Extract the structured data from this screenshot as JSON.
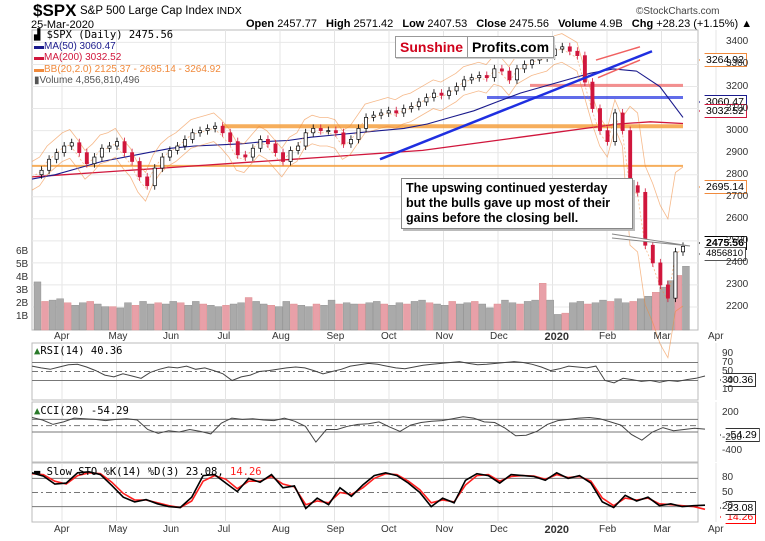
{
  "header": {
    "symbol": "$SPX",
    "name": "S&P 500 Large Cap Index",
    "exchange": "INDX",
    "date": "25-Mar-2020",
    "credit": "©StockCharts.com",
    "open_label": "Open",
    "open": "2457.77",
    "high_label": "High",
    "high": "2571.42",
    "low_label": "Low",
    "low": "2407.53",
    "close_label": "Close",
    "close": "2475.56",
    "volume_label": "Volume",
    "volume": "4.9B",
    "chg_label": "Chg",
    "chg": "+28.23 (+1.15%) ▲"
  },
  "logo": {
    "part1": "Sunshine",
    "part2": "Profits.com"
  },
  "annotation": "The upswing continued yesterday but the bulls gave up most of their gains before the closing bell.",
  "legend": {
    "price": "$SPX (Daily) 2475.56",
    "ma50": "MA(50) 3060.47",
    "ma200": "MA(200) 3032.52",
    "bb": "BB(20,2.0) 2125.37 - 2695.14 - 3264.92",
    "volume": "Volume 4,856,810,496"
  },
  "colors": {
    "ma50": "#1a1a8c",
    "ma200": "#d0163c",
    "bb": "#f08a3c",
    "trend_blue": "#1f2fe0",
    "orange_level": "#f5a040",
    "red_level": "#f06060",
    "candle_up": "#000000",
    "candle_down": "#d0163c",
    "vol_up": "#aaaaaa",
    "vol_down": "#e8a0a8",
    "rsi_hi_fill": "#5a8a5a",
    "rsi_lo_fill": "#a04848"
  },
  "tags": {
    "bb_upper": "3264.92",
    "ma50": "3060.47",
    "ma200": "3032.52",
    "bb_mid": "2695.14",
    "close": "2475.56",
    "volume": "4856810",
    "rsi": "40.36",
    "cci": "-54.29",
    "sto_k": "23.08",
    "sto_d": "14.26"
  },
  "chart_data": [
    {
      "type": "candlestick",
      "title": "$SPX S&P 500 Large Cap Index (Daily)",
      "x_labels": [
        "Apr",
        "May",
        "Jun",
        "Jul",
        "Aug",
        "Sep",
        "Oct",
        "Nov",
        "Dec",
        "2020",
        "Feb",
        "Mar",
        "Apr"
      ],
      "y_ticks": [
        2200,
        2300,
        2400,
        2500,
        2600,
        2700,
        2800,
        2900,
        3000,
        3100,
        3200,
        3300,
        3400
      ],
      "ylim": [
        2150,
        3420
      ],
      "close_path": [
        2800,
        2820,
        2870,
        2900,
        2930,
        2945,
        2900,
        2850,
        2880,
        2920,
        2930,
        2950,
        2900,
        2860,
        2790,
        2750,
        2830,
        2880,
        2910,
        2930,
        2960,
        2990,
        3000,
        3010,
        3020,
        2990,
        2950,
        2890,
        2880,
        2920,
        2960,
        2940,
        2900,
        2860,
        2910,
        2930,
        2990,
        3010,
        3000,
        3000,
        2990,
        2940,
        2960,
        3010,
        3060,
        3070,
        3080,
        3090,
        3080,
        3100,
        3110,
        3130,
        3150,
        3170,
        3160,
        3180,
        3200,
        3230,
        3240,
        3250,
        3240,
        3280,
        3270,
        3230,
        3280,
        3300,
        3320,
        3330,
        3340,
        3370,
        3380,
        3360,
        3340,
        3220,
        3100,
        3000,
        2950,
        3080,
        3000,
        2750,
        2720,
        2480,
        2400,
        2300,
        2240,
        2450,
        2475
      ],
      "ma50": [
        2780,
        2800,
        2830,
        2860,
        2880,
        2900,
        2920,
        2930,
        2935,
        2940,
        2950,
        2955,
        2970,
        2980,
        2990,
        3000,
        3010,
        3030,
        3060,
        3090,
        3130,
        3170,
        3200,
        3230,
        3260,
        3280,
        3270,
        3200,
        3060
      ],
      "ma200": [
        2790,
        2800,
        2810,
        2820,
        2830,
        2840,
        2850,
        2860,
        2870,
        2880,
        2890,
        2900,
        2910,
        2930,
        2950,
        2970,
        2990,
        3010,
        3030,
        3040,
        3032
      ],
      "bb_latest": {
        "lower": 2125.37,
        "middle": 2695.14,
        "upper": 3264.92
      },
      "levels_orange": [
        3020,
        2840
      ],
      "levels_blue": [
        3150
      ],
      "levels_red": [
        3205
      ]
    },
    {
      "type": "bar",
      "title": "Volume",
      "y_ticks": [
        "1B",
        "2B",
        "3B",
        "4B",
        "5B",
        "6B"
      ],
      "values_billion": [
        3.7,
        2.2,
        2.3,
        2.4,
        2.1,
        1.9,
        2.1,
        2.2,
        2.0,
        1.8,
        1.8,
        1.7,
        2.1,
        1.9,
        2.2,
        2.0,
        2.1,
        2.0,
        2.2,
        2.1,
        1.9,
        2.2,
        2.0,
        1.9,
        1.8,
        1.9,
        2.0,
        2.1,
        2.5,
        2.2,
        2.0,
        1.9,
        1.8,
        2.2,
        2.0,
        1.9,
        1.8,
        2.0,
        1.9,
        2.3,
        2.0,
        2.1,
        2.0,
        2.0,
        2.1,
        2.2,
        2.0,
        1.9,
        2.1,
        2.0,
        2.2,
        2.3,
        2.1,
        2.0,
        1.9,
        2.2,
        2.0,
        2.1,
        2.2,
        2.0,
        1.7,
        2.0,
        2.3,
        2.1,
        2.0,
        2.2,
        2.3,
        3.6,
        2.3,
        1.2,
        1.3,
        2.1,
        2.2,
        2.0,
        2.1,
        2.3,
        2.2,
        2.4,
        2.1,
        2.2,
        2.4,
        2.6,
        2.9,
        3.3,
        3.8,
        4.2,
        4.9
      ]
    },
    {
      "type": "line",
      "title": "RSI(14) 40.36",
      "y_ticks": [
        10,
        30,
        50,
        70,
        90
      ],
      "ylim": [
        0,
        100
      ],
      "values": [
        62,
        58,
        55,
        60,
        65,
        66,
        60,
        52,
        42,
        38,
        45,
        40,
        35,
        48,
        55,
        60,
        58,
        62,
        55,
        58,
        52,
        45,
        30,
        38,
        42,
        50,
        52,
        55,
        58,
        60,
        58,
        52,
        45,
        50,
        55,
        62,
        65,
        68,
        66,
        62,
        58,
        56,
        60,
        64,
        66,
        68,
        70,
        72,
        68,
        65,
        66,
        68,
        70,
        72,
        70,
        66,
        60,
        52,
        56,
        62,
        60,
        58,
        62,
        30,
        25,
        35,
        32,
        28,
        30,
        26,
        30,
        28,
        32,
        35,
        40
      ]
    },
    {
      "type": "line",
      "title": "CCI(20) -54.29",
      "y_ticks": [
        -400,
        -200,
        200
      ],
      "ylim": [
        -480,
        280
      ],
      "values": [
        130,
        90,
        20,
        60,
        120,
        110,
        100,
        80,
        100,
        110,
        90,
        -60,
        -120,
        -80,
        -100,
        -60,
        -90,
        -130,
        40,
        120,
        100,
        110,
        90,
        80,
        120,
        70,
        -10,
        -260,
        -60,
        -60,
        -10,
        20,
        30,
        60,
        -20,
        -90,
        10,
        50,
        70,
        80,
        110,
        140,
        120,
        60,
        50,
        -40,
        -160,
        -150,
        -90,
        20,
        80,
        100,
        120,
        130,
        110,
        60,
        10,
        -140,
        -230,
        -100,
        -30,
        -80,
        -60,
        -40,
        -54
      ]
    },
    {
      "type": "line",
      "title": "Slow STO %K(14) %D(3) 23.08, 14.26",
      "y_ticks": [
        20,
        50,
        80
      ],
      "ylim": [
        0,
        100
      ],
      "series": [
        {
          "name": "%K(14)",
          "color": "#000000",
          "values": [
            92,
            85,
            68,
            70,
            92,
            94,
            88,
            65,
            40,
            30,
            35,
            26,
            20,
            18,
            40,
            86,
            88,
            70,
            52,
            80,
            72,
            88,
            60,
            64,
            16,
            38,
            24,
            60,
            42,
            66,
            86,
            92,
            86,
            70,
            50,
            20,
            38,
            28,
            76,
            90,
            86,
            70,
            88,
            86,
            84,
            76,
            92,
            80,
            86,
            70,
            30,
            18,
            44,
            32,
            40,
            22,
            26,
            20,
            22,
            23.08
          ]
        },
        {
          "name": "%D(3)",
          "color": "#ff2020",
          "values": [
            90,
            88,
            74,
            68,
            86,
            92,
            90,
            72,
            48,
            34,
            34,
            28,
            22,
            18,
            32,
            74,
            86,
            78,
            58,
            74,
            74,
            84,
            68,
            62,
            24,
            32,
            28,
            50,
            46,
            60,
            80,
            90,
            88,
            74,
            56,
            28,
            34,
            30,
            66,
            86,
            88,
            74,
            84,
            86,
            85,
            78,
            88,
            82,
            84,
            74,
            38,
            22,
            38,
            34,
            38,
            26,
            24,
            22,
            20,
            14.26
          ]
        }
      ]
    }
  ]
}
